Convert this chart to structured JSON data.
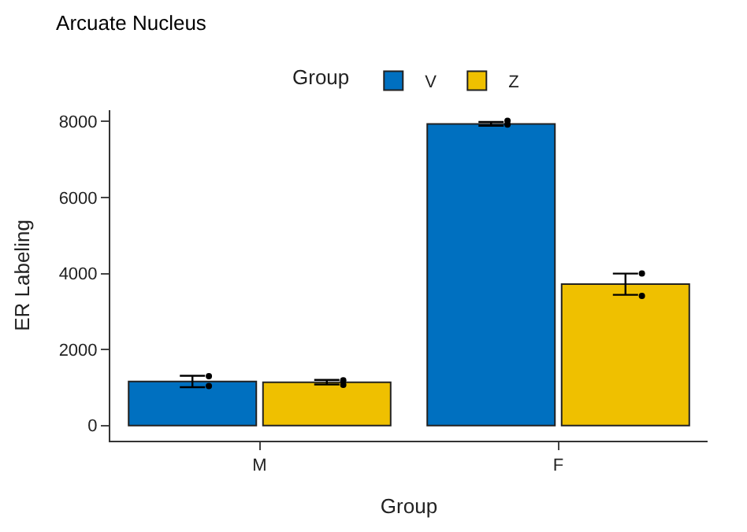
{
  "chart_data": {
    "type": "bar",
    "title": "Arcuate Nucleus",
    "xlabel": "Group",
    "ylabel": "ER Labeling",
    "legend_title": "Group",
    "legend": "top",
    "categories": [
      "M",
      "F"
    ],
    "series": [
      {
        "name": "V",
        "color": "#0070c0",
        "values": [
          1160,
          7940
        ],
        "errors": [
          150,
          50
        ]
      },
      {
        "name": "Z",
        "color": "#efc000",
        "values": [
          1140,
          3720
        ],
        "errors": [
          60,
          280
        ]
      },
      {
        "type": "scatter",
        "color": "#000000",
        "x": [
          "M",
          "M",
          "F",
          "F"
        ],
        "values": [
          1300,
          1040,
          8020,
          7920
        ]
      },
      {
        "type": "scatter",
        "color": "#000000",
        "x": [
          "M",
          "M",
          "F",
          "F"
        ],
        "values": [
          1190,
          1070,
          4000,
          3410
        ]
      }
    ],
    "ylim": [
      -400,
      8300
    ],
    "yticks": [
      0,
      2000,
      4000,
      6000,
      8000
    ]
  }
}
